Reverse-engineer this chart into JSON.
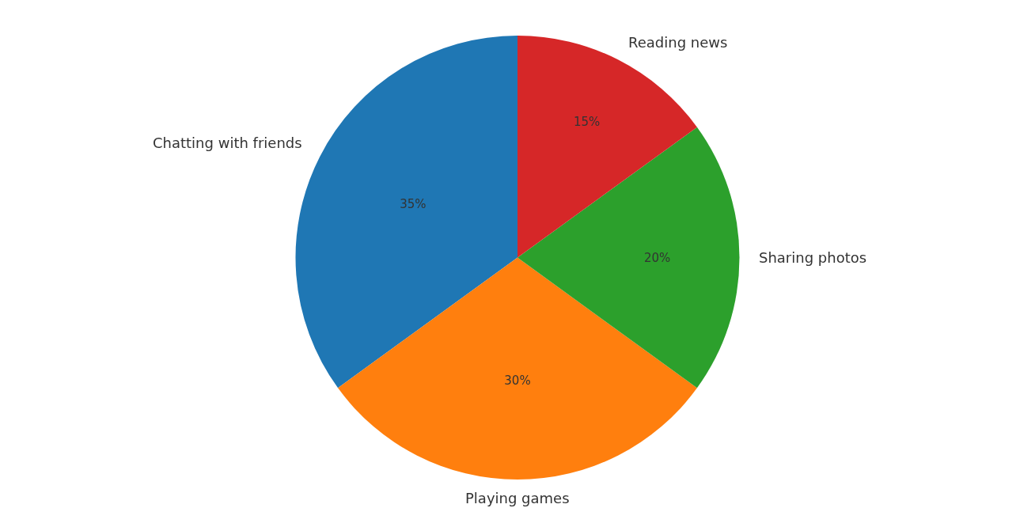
{
  "chart_data": {
    "type": "pie",
    "categories": [
      "Chatting with friends",
      "Playing games",
      "Sharing photos",
      "Reading news"
    ],
    "values": [
      35,
      30,
      20,
      15
    ],
    "colors": [
      "#1f77b4",
      "#ff7f0e",
      "#2ca02c",
      "#d62728"
    ],
    "value_labels": [
      "35%",
      "30%",
      "20%",
      "15%"
    ],
    "legend": false
  }
}
